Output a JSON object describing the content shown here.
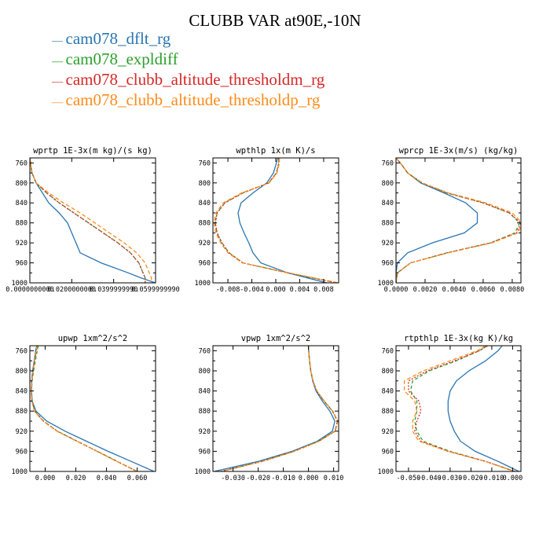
{
  "figure": {
    "title": "CLUBB VAR at90E,-10N"
  },
  "legend": [
    {
      "name": "cam078_dflt_rg",
      "color": "#2a75b0"
    },
    {
      "name": "cam078_expldiff",
      "color": "#2ca02c"
    },
    {
      "name": "cam078_clubb_altitude_thresholdm_rg",
      "color": "#d62728"
    },
    {
      "name": "cam078_clubb_altitude_thresholdp_rg",
      "color": "#ff8c1a"
    }
  ],
  "chart_data": [
    {
      "type": "line",
      "title": "wprtp  1E-3x(m kg)/(s kg)",
      "xlim": [
        0,
        0.06
      ],
      "ylim": [
        1000,
        750
      ],
      "y_reversed": true,
      "xticks": [
        0,
        0.02,
        0.04,
        0.06
      ],
      "xtick_labels": [
        "0.0000000000",
        "0.0200000000",
        "0.0399999990",
        "0.0599999990"
      ],
      "yticks": [
        760,
        800,
        840,
        880,
        920,
        960,
        1000
      ],
      "y": [
        750,
        760,
        780,
        800,
        820,
        840,
        860,
        880,
        900,
        920,
        940,
        960,
        980,
        990,
        1000
      ],
      "series": [
        {
          "name": "cam078_dflt_rg",
          "values": [
            0,
            0.0003,
            0.001,
            0.003,
            0.006,
            0.009,
            0.014,
            0.018,
            0.02,
            0.022,
            0.024,
            0.034,
            0.047,
            0.053,
            0.06
          ]
        },
        {
          "name": "cam078_expldiff",
          "values": [
            0,
            0.0003,
            0.001,
            0.003,
            0.008,
            0.014,
            0.021,
            0.028,
            0.035,
            0.042,
            0.048,
            0.052,
            0.054,
            0.055,
            0.055
          ]
        },
        {
          "name": "cam078_clubb_altitude_thresholdm_rg",
          "values": [
            0,
            0.0003,
            0.001,
            0.003,
            0.008,
            0.014,
            0.021,
            0.028,
            0.035,
            0.042,
            0.048,
            0.052,
            0.054,
            0.055,
            0.055
          ]
        },
        {
          "name": "cam078_clubb_altitude_thresholdp_rg",
          "values": [
            0,
            0.0003,
            0.001,
            0.003,
            0.009,
            0.016,
            0.024,
            0.031,
            0.038,
            0.045,
            0.051,
            0.055,
            0.057,
            0.058,
            0.058
          ]
        }
      ]
    },
    {
      "type": "line",
      "title": "wpthlp  1x(m K)/s",
      "xlim": [
        -0.0105,
        0.0105
      ],
      "ylim": [
        1000,
        750
      ],
      "y_reversed": true,
      "xticks": [
        -0.008,
        -0.004,
        0,
        0.004,
        0.008
      ],
      "xtick_labels": [
        "-0.008",
        "-0.004",
        "0.000",
        "0.004",
        "0.008"
      ],
      "yticks": [
        760,
        800,
        840,
        880,
        920,
        960,
        1000
      ],
      "y": [
        750,
        760,
        780,
        800,
        820,
        840,
        860,
        880,
        900,
        920,
        940,
        960,
        980,
        1000
      ],
      "series": [
        {
          "name": "cam078_dflt_rg",
          "values": [
            0.0003,
            0.0001,
            -0.0004,
            -0.0015,
            -0.0038,
            -0.0058,
            -0.0063,
            -0.006,
            -0.0053,
            -0.0045,
            -0.0038,
            -0.0025,
            0.002,
            0.0085
          ]
        },
        {
          "name": "cam078_expldiff",
          "values": [
            0.0005,
            0.0005,
            0.0001,
            -0.0012,
            -0.0055,
            -0.0085,
            -0.0098,
            -0.0101,
            -0.0098,
            -0.009,
            -0.0078,
            -0.0055,
            0.002,
            0.0102
          ]
        },
        {
          "name": "cam078_clubb_altitude_thresholdm_rg",
          "values": [
            0.0005,
            0.0005,
            0.0001,
            -0.0012,
            -0.0055,
            -0.0085,
            -0.0098,
            -0.0101,
            -0.0098,
            -0.009,
            -0.0078,
            -0.0055,
            0.002,
            0.0102
          ]
        },
        {
          "name": "cam078_clubb_altitude_thresholdp_rg",
          "values": [
            0.0006,
            0.0006,
            0.0002,
            -0.0011,
            -0.0057,
            -0.0088,
            -0.01,
            -0.0103,
            -0.01,
            -0.0092,
            -0.008,
            -0.0056,
            0.0022,
            0.0105
          ]
        }
      ]
    },
    {
      "type": "line",
      "title": "wprcp  1E-3x(m/s) (kg/kg)",
      "xlim": [
        0,
        0.0086
      ],
      "ylim": [
        1000,
        750
      ],
      "y_reversed": true,
      "xticks": [
        0,
        0.002,
        0.004,
        0.006,
        0.008
      ],
      "xtick_labels": [
        "0.0000",
        "0.0020",
        "0.0040",
        "0.0060",
        "0.0080"
      ],
      "yticks": [
        760,
        800,
        840,
        880,
        920,
        960,
        1000
      ],
      "y": [
        750,
        760,
        780,
        800,
        820,
        840,
        860,
        880,
        900,
        920,
        940,
        960,
        980,
        1000
      ],
      "series": [
        {
          "name": "cam078_dflt_rg",
          "values": [
            0,
            0.0003,
            0.0008,
            0.0017,
            0.0033,
            0.0048,
            0.0056,
            0.0056,
            0.0047,
            0.0025,
            0.0008,
            0.0001,
            0,
            0
          ]
        },
        {
          "name": "cam078_expldiff",
          "values": [
            0,
            0.0003,
            0.0008,
            0.0018,
            0.0035,
            0.006,
            0.0078,
            0.0085,
            0.0082,
            0.0065,
            0.0035,
            0.001,
            0.0001,
            0
          ]
        },
        {
          "name": "cam078_clubb_altitude_thresholdm_rg",
          "values": [
            0,
            0.0003,
            0.0008,
            0.0018,
            0.0035,
            0.006,
            0.0078,
            0.0086,
            0.0083,
            0.0065,
            0.0035,
            0.001,
            0.0001,
            0
          ]
        },
        {
          "name": "cam078_clubb_altitude_thresholdp_rg",
          "values": [
            0,
            0.0003,
            0.0008,
            0.0018,
            0.0036,
            0.0062,
            0.008,
            0.0087,
            0.0084,
            0.0066,
            0.0036,
            0.001,
            0.0001,
            0
          ]
        }
      ]
    },
    {
      "type": "line",
      "title": "upwp  1xm^2/s^2",
      "xlim": [
        -0.01,
        0.072
      ],
      "ylim": [
        1000,
        750
      ],
      "y_reversed": true,
      "xticks": [
        0,
        0.02,
        0.04,
        0.06
      ],
      "xtick_labels": [
        "0.000",
        "0.020",
        "0.040",
        "0.060"
      ],
      "yticks": [
        760,
        800,
        840,
        880,
        920,
        960,
        1000
      ],
      "y": [
        750,
        760,
        780,
        800,
        820,
        840,
        860,
        880,
        900,
        920,
        940,
        960,
        980,
        1000
      ],
      "series": [
        {
          "name": "cam078_dflt_rg",
          "values": [
            -0.0055,
            -0.0062,
            -0.0072,
            -0.0082,
            -0.0088,
            -0.009,
            -0.0085,
            -0.006,
            0.001,
            0.013,
            0.027,
            0.041,
            0.056,
            0.071
          ]
        },
        {
          "name": "cam078_expldiff",
          "values": [
            -0.0045,
            -0.0052,
            -0.0064,
            -0.0076,
            -0.0085,
            -0.0089,
            -0.0085,
            -0.0068,
            -0.001,
            0.008,
            0.021,
            0.034,
            0.047,
            0.06
          ]
        },
        {
          "name": "cam078_clubb_altitude_thresholdm_rg",
          "values": [
            -0.005,
            -0.0057,
            -0.0068,
            -0.0079,
            -0.0087,
            -0.009,
            -0.0086,
            -0.007,
            -0.0012,
            0.0078,
            0.0208,
            0.0338,
            0.0468,
            0.0598
          ]
        },
        {
          "name": "cam078_clubb_altitude_thresholdp_rg",
          "values": [
            -0.0052,
            -0.0059,
            -0.007,
            -0.008,
            -0.0088,
            -0.0091,
            -0.0087,
            -0.0071,
            -0.0013,
            0.0077,
            0.0207,
            0.0337,
            0.0467,
            0.0597
          ]
        }
      ]
    },
    {
      "type": "line",
      "title": "vpwp  1xm^2/s^2",
      "xlim": [
        -0.038,
        0.012
      ],
      "ylim": [
        1000,
        750
      ],
      "y_reversed": true,
      "xticks": [
        -0.03,
        -0.02,
        -0.01,
        0,
        0.01
      ],
      "xtick_labels": [
        "-0.030",
        "-0.020",
        "-0.010",
        "0.000",
        "0.010"
      ],
      "yticks": [
        760,
        800,
        840,
        880,
        920,
        960,
        1000
      ],
      "y": [
        750,
        760,
        780,
        800,
        820,
        840,
        860,
        880,
        900,
        920,
        940,
        960,
        980,
        1000
      ],
      "series": [
        {
          "name": "cam078_dflt_rg",
          "values": [
            0,
            0.0001,
            0.0004,
            0.0009,
            0.0017,
            0.003,
            0.0055,
            0.0085,
            0.0105,
            0.0095,
            0.0035,
            -0.0065,
            -0.02,
            -0.0375
          ]
        },
        {
          "name": "cam078_expldiff",
          "values": [
            0,
            0.0001,
            0.0004,
            0.0009,
            0.0018,
            0.0033,
            0.0062,
            0.0095,
            0.0115,
            0.0105,
            0.004,
            -0.0058,
            -0.0185,
            -0.035
          ]
        },
        {
          "name": "cam078_clubb_altitude_thresholdm_rg",
          "values": [
            0,
            0.0001,
            0.0004,
            0.0009,
            0.0018,
            0.0033,
            0.0062,
            0.0096,
            0.0116,
            0.0106,
            0.0041,
            -0.0057,
            -0.0184,
            -0.0348
          ]
        },
        {
          "name": "cam078_clubb_altitude_thresholdp_rg",
          "values": [
            0,
            0.0001,
            0.0004,
            0.0009,
            0.0018,
            0.0034,
            0.0063,
            0.0097,
            0.0117,
            0.0107,
            0.0042,
            -0.0056,
            -0.0183,
            -0.0346
          ]
        }
      ]
    },
    {
      "type": "line",
      "title": "rtpthlp  1E-3x(kg K)/kg",
      "xlim": [
        -0.056,
        0.004
      ],
      "ylim": [
        1000,
        750
      ],
      "y_reversed": true,
      "xticks": [
        -0.05,
        -0.04,
        -0.03,
        -0.02,
        -0.01,
        0
      ],
      "xtick_labels": [
        "-0.050",
        "-0.040",
        "-0.030",
        "-0.020",
        "-0.010",
        "0.000"
      ],
      "yticks": [
        760,
        800,
        840,
        880,
        920,
        960,
        1000
      ],
      "y": [
        750,
        760,
        780,
        800,
        820,
        840,
        860,
        880,
        900,
        920,
        940,
        960,
        980,
        1000
      ],
      "series": [
        {
          "name": "cam078_dflt_rg",
          "values": [
            -0.005,
            -0.007,
            -0.013,
            -0.021,
            -0.027,
            -0.03,
            -0.031,
            -0.031,
            -0.03,
            -0.028,
            -0.025,
            -0.018,
            -0.007,
            0.003
          ]
        },
        {
          "name": "cam078_expldiff",
          "values": [
            -0.012,
            -0.016,
            -0.027,
            -0.04,
            -0.048,
            -0.049,
            -0.046,
            -0.046,
            -0.047,
            -0.046,
            -0.043,
            -0.03,
            -0.013,
            0.001
          ]
        },
        {
          "name": "cam078_clubb_altitude_thresholdm_rg",
          "values": [
            -0.012,
            -0.016,
            -0.028,
            -0.041,
            -0.05,
            -0.05,
            -0.045,
            -0.044,
            -0.046,
            -0.047,
            -0.044,
            -0.031,
            -0.013,
            0.001
          ]
        },
        {
          "name": "cam078_clubb_altitude_thresholdp_rg",
          "values": [
            -0.013,
            -0.017,
            -0.03,
            -0.043,
            -0.052,
            -0.052,
            -0.047,
            -0.046,
            -0.048,
            -0.048,
            -0.045,
            -0.031,
            -0.013,
            0.001
          ]
        }
      ]
    }
  ]
}
